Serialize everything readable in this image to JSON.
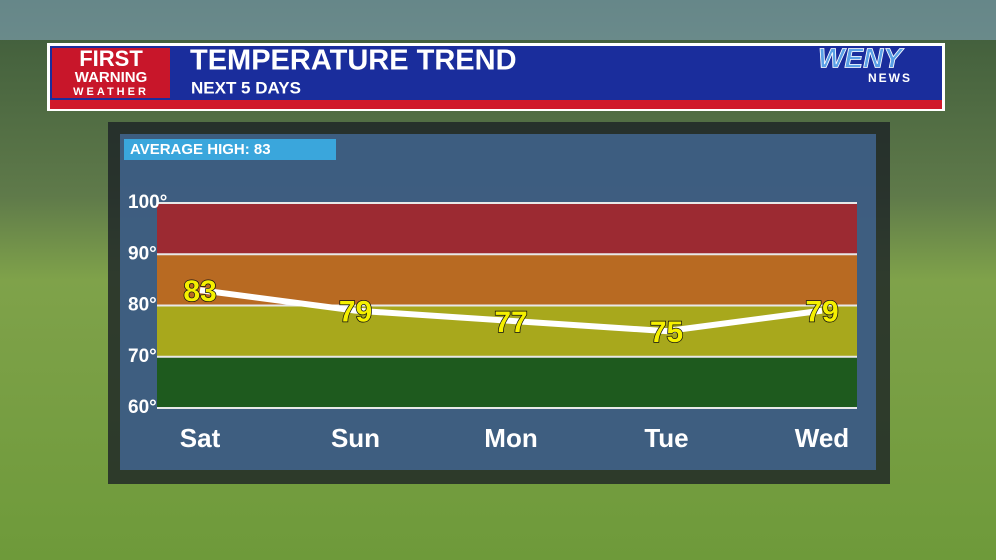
{
  "brand": {
    "left_top": "FIRST",
    "left_middle": "WARNING",
    "left_bottom": "WEATHER",
    "right_top": "WENY",
    "right_bottom": "NEWS"
  },
  "chart_data": {
    "type": "line",
    "title": "TEMPERATURE TREND",
    "subtitle": "NEXT 5 DAYS",
    "annotation": "AVERAGE HIGH: 83",
    "categories": [
      "Sat",
      "Sun",
      "Mon",
      "Tue",
      "Wed"
    ],
    "values": [
      83,
      79,
      77,
      75,
      79
    ],
    "color": "#ffffff",
    "label_color": "#f5f000",
    "ylim": [
      60,
      100
    ],
    "yticks": [
      {
        "value": 60,
        "label": "60°"
      },
      {
        "value": 70,
        "label": "70°"
      },
      {
        "value": 80,
        "label": "80°"
      },
      {
        "value": 90,
        "label": "90°"
      },
      {
        "value": 100,
        "label": "100°"
      }
    ],
    "bands": [
      {
        "from": 60,
        "to": 70,
        "color": "#1e5a1e"
      },
      {
        "from": 70,
        "to": 80,
        "color": "#a8a81c"
      },
      {
        "from": 80,
        "to": 90,
        "color": "#b86a22"
      },
      {
        "from": 90,
        "to": 100,
        "color": "#9c2a32"
      }
    ],
    "grid": true
  }
}
